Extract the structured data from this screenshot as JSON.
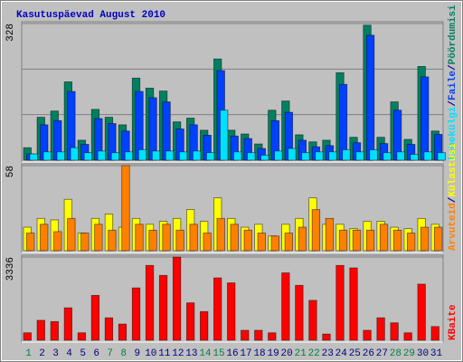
{
  "chart_data": [
    {
      "type": "bar",
      "title": "Kasutuspäevad August 2010",
      "ylim": [
        0,
        328
      ],
      "yticks": [
        328
      ],
      "legend_separator": "/",
      "series": [
        {
          "name": "Pöördumisi",
          "color": "#008060",
          "values": [
            30,
            103,
            118,
            188,
            48,
            122,
            103,
            85,
            197,
            173,
            166,
            92,
            101,
            72,
            243,
            72,
            63,
            39,
            120,
            142,
            61,
            44,
            48,
            210,
            55,
            324,
            55,
            140,
            50,
            225,
            70
          ]
        },
        {
          "name": "Faile",
          "color": "#0040ff",
          "values": [
            15,
            85,
            95,
            165,
            38,
            100,
            88,
            70,
            165,
            150,
            140,
            75,
            85,
            60,
            215,
            58,
            52,
            28,
            95,
            115,
            48,
            32,
            35,
            182,
            42,
            300,
            40,
            120,
            38,
            200,
            62
          ]
        },
        {
          "name": "Lehekülgi",
          "color": "#00e0ff",
          "values": [
            15,
            20,
            20,
            30,
            18,
            22,
            18,
            20,
            25,
            22,
            22,
            20,
            22,
            18,
            120,
            20,
            18,
            12,
            22,
            28,
            18,
            20,
            20,
            25,
            20,
            25,
            18,
            20,
            14,
            20,
            18
          ]
        }
      ]
    },
    {
      "type": "bar",
      "ylim": [
        0,
        58
      ],
      "yticks": [
        58
      ],
      "legend_separator": "/",
      "series": [
        {
          "name": "Külastusi",
          "color": "#ffff00",
          "values": [
            16,
            22,
            21,
            35,
            12,
            22,
            25,
            16,
            22,
            18,
            20,
            22,
            28,
            20,
            36,
            22,
            16,
            18,
            10,
            18,
            22,
            36,
            18,
            18,
            15,
            20,
            20,
            16,
            15,
            22,
            18
          ]
        },
        {
          "name": "Arvuteid",
          "color": "#ff8000",
          "values": [
            12,
            18,
            13,
            22,
            12,
            18,
            14,
            58,
            18,
            14,
            18,
            14,
            18,
            12,
            22,
            18,
            14,
            12,
            10,
            12,
            16,
            28,
            22,
            14,
            14,
            14,
            18,
            14,
            12,
            16,
            16
          ]
        }
      ]
    },
    {
      "type": "bar",
      "ylim": [
        0,
        3336
      ],
      "yticks": [
        3336
      ],
      "legend_separator": "/",
      "categories": [
        "1",
        "2",
        "3",
        "4",
        "5",
        "6",
        "7",
        "8",
        "9",
        "10",
        "11",
        "12",
        "13",
        "14",
        "15",
        "16",
        "17",
        "18",
        "19",
        "20",
        "21",
        "22",
        "23",
        "24",
        "25",
        "26",
        "27",
        "28",
        "29",
        "30",
        "31"
      ],
      "category_colors": [
        "#008040",
        "#000080",
        "#000080",
        "#000080",
        "#000080",
        "#000080",
        "#008040",
        "#008040",
        "#000080",
        "#000080",
        "#000080",
        "#000080",
        "#000080",
        "#008040",
        "#008040",
        "#000080",
        "#000080",
        "#000080",
        "#000080",
        "#000080",
        "#008040",
        "#008040",
        "#000080",
        "#000080",
        "#000080",
        "#000080",
        "#000080",
        "#008040",
        "#008040",
        "#000080",
        "#000080"
      ],
      "series": [
        {
          "name": "KBaite",
          "color": "#ff0000",
          "values": [
            300,
            800,
            750,
            1300,
            300,
            1800,
            900,
            650,
            2100,
            3000,
            2600,
            3336,
            1500,
            1150,
            2500,
            2300,
            400,
            400,
            300,
            2700,
            2200,
            1600,
            250,
            3000,
            2900,
            400,
            900,
            700,
            300,
            2250,
            550
          ]
        }
      ]
    }
  ]
}
